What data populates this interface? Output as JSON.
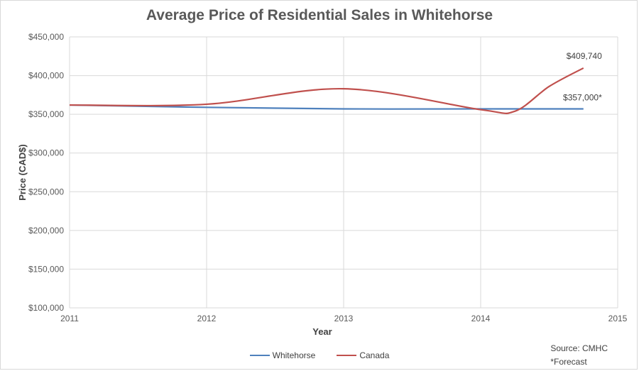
{
  "chart_data": {
    "type": "line",
    "title": "Average Price of Residential Sales in Whitehorse",
    "xlabel": "Year",
    "ylabel": "Price (CAD$)",
    "xlim": [
      2011,
      2015
    ],
    "ylim": [
      100000,
      450000
    ],
    "x_ticks": [
      "2011",
      "2012",
      "2013",
      "2014",
      "2015"
    ],
    "y_ticks": [
      "$100,000",
      "$150,000",
      "$200,000",
      "$250,000",
      "$300,000",
      "$350,000",
      "$400,000",
      "$450,000"
    ],
    "grid": true,
    "legend_position": "bottom",
    "series": [
      {
        "name": "Whitehorse",
        "color": "#4f81bd",
        "x": [
          2011,
          2012,
          2013,
          2014,
          2014.75
        ],
        "y": [
          362000,
          359000,
          357000,
          357000,
          357000
        ]
      },
      {
        "name": "Canada",
        "color": "#c0504d",
        "x": [
          2011,
          2012,
          2013,
          2014,
          2014.25,
          2014.5,
          2014.75
        ],
        "y": [
          362000,
          363000,
          383000,
          356000,
          354000,
          386000,
          409740
        ]
      }
    ],
    "annotations": [
      {
        "text": "$409,740",
        "x": 2014.75,
        "y": 409740
      },
      {
        "text": "$357,000*",
        "x": 2014.75,
        "y": 357000
      }
    ]
  },
  "footer": {
    "source": "Source: CMHC",
    "note": "*Forecast"
  }
}
